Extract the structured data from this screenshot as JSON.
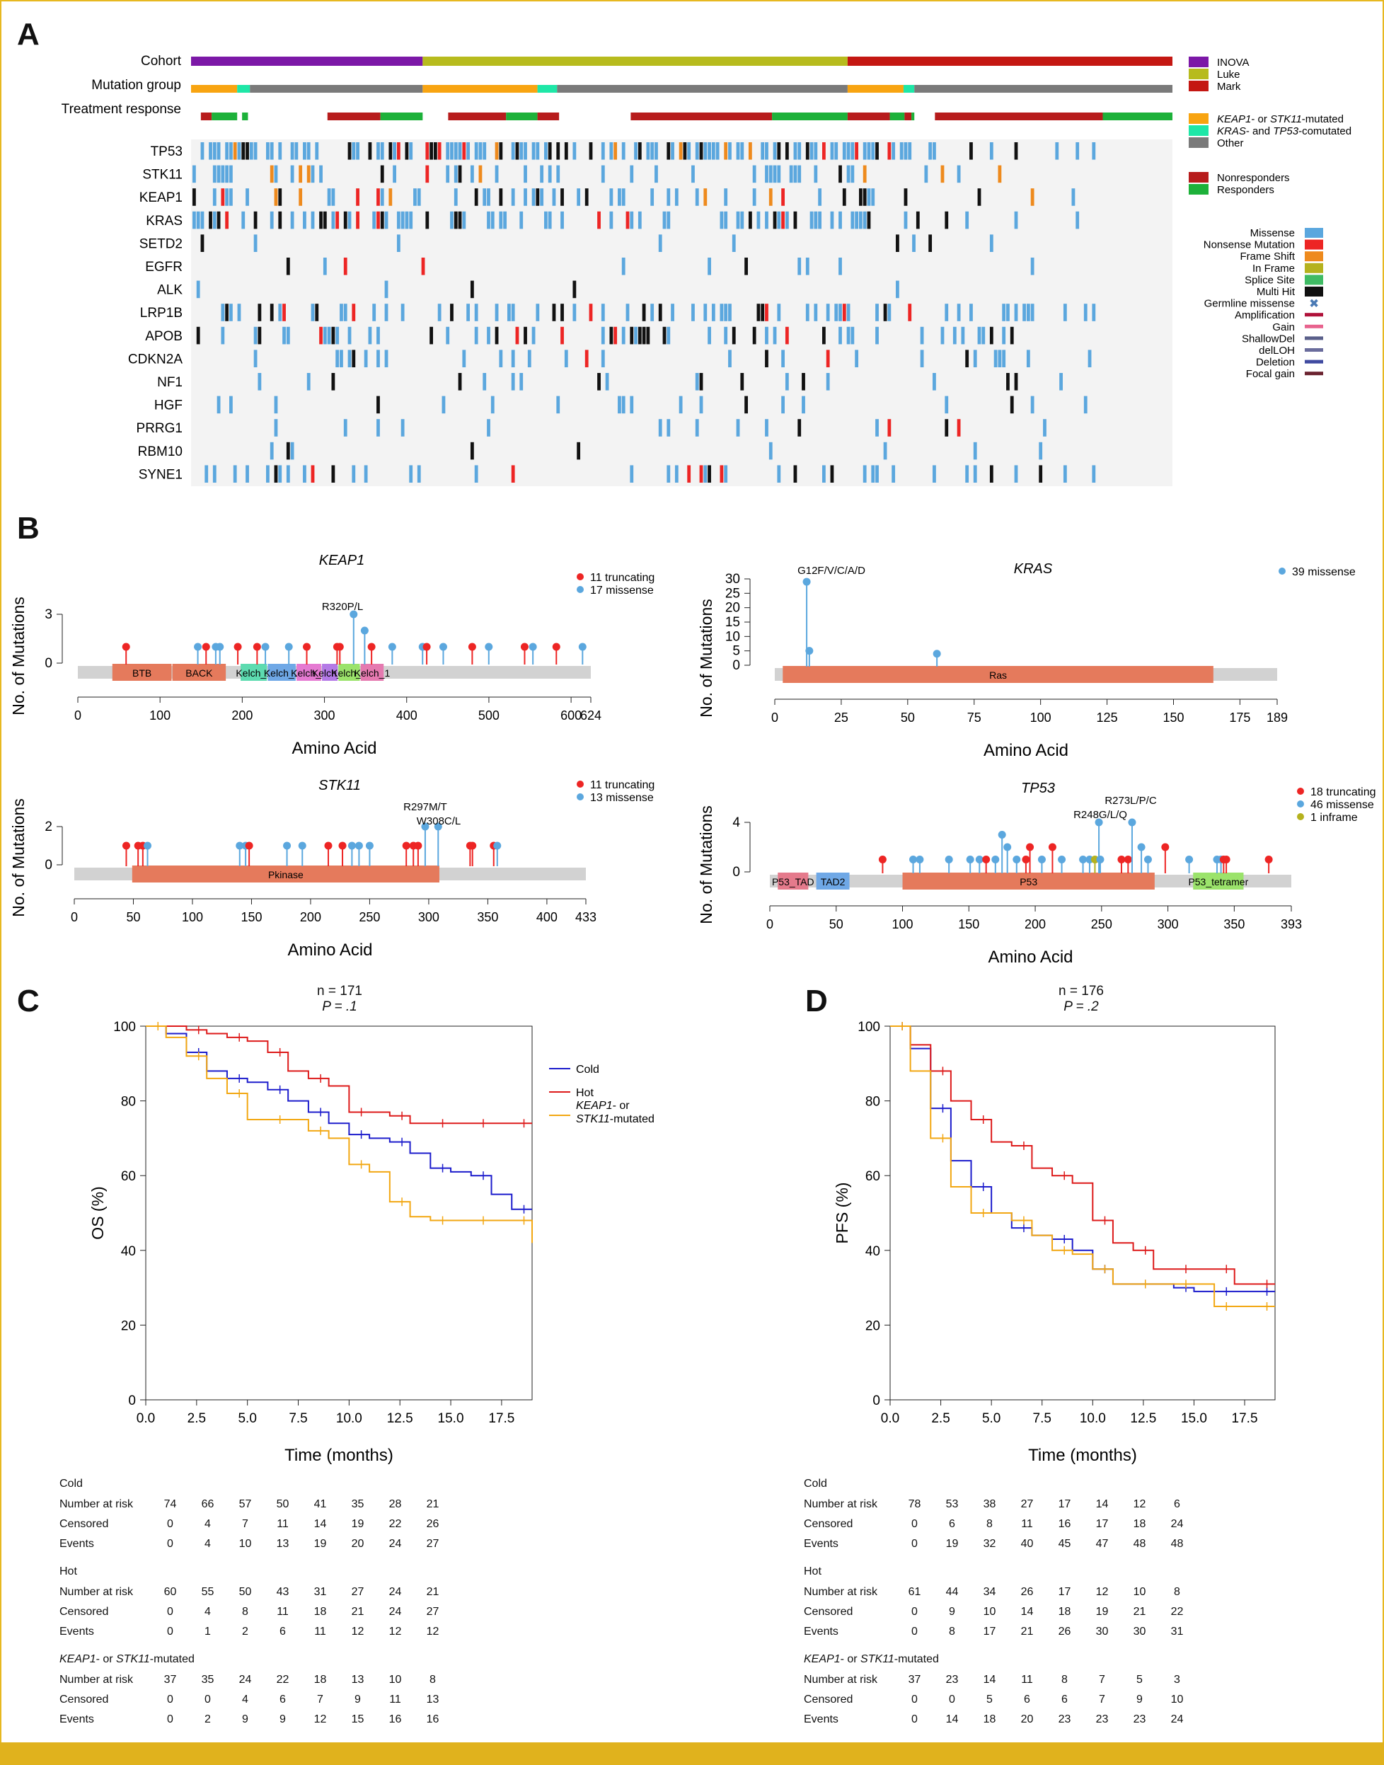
{
  "panels": {
    "a": "A",
    "b": "B",
    "c": "C",
    "d": "D"
  },
  "colors": {
    "missense": "#5ba7de",
    "nonsense": "#ed2524",
    "frameshift": "#ee8a1d",
    "inframe": "#b5b21e",
    "splice": "#3fbb64",
    "multihit": "#111111",
    "germline": "#4a7ab5",
    "amplification": "#b0123a",
    "gain": "#e8638e",
    "shallowdel": "#5a5f8a",
    "delloh": "#6a6c9c",
    "deletion": "#3f4aa0",
    "focalgain": "#6b2330",
    "inova": "#7c18a7",
    "luke": "#b7bb1d",
    "mark": "#c41712",
    "keap": "#f8a411",
    "kras_tp53": "#1ee7a7",
    "other": "#7a7a7a",
    "nonresp": "#b71c1c",
    "resp": "#1db13a",
    "cold": "#1c1ccc",
    "hot": "#dd1a1a",
    "keap_curve": "#f2a712",
    "frame": "#e0b21d"
  },
  "oncoprint": {
    "track_labels": [
      "Cohort",
      "Mutation group",
      "Treatment response"
    ],
    "genes": [
      "TP53",
      "STK11",
      "KEAP1",
      "KRAS",
      "SETD2",
      "EGFR",
      "ALK",
      "LRP1B",
      "APOB",
      "CDKN2A",
      "NF1",
      "HGF",
      "PRRG1",
      "RBM10",
      "SYNE1"
    ],
    "legend_cohort": [
      "INOVA",
      "Luke",
      "Mark"
    ],
    "legend_group": [
      {
        "pre": "KEAP1",
        "mid": "- or ",
        "it2": "STK11",
        "post": "-mutated"
      },
      {
        "pre": "KRAS",
        "mid": "- and ",
        "it2": "TP53",
        "post": "-comutated"
      },
      {
        "pre": "",
        "mid": "Other",
        "it2": "",
        "post": ""
      }
    ],
    "legend_response": [
      "Nonresponders",
      "Responders"
    ],
    "legend_alteration": [
      "Missense",
      "Nonsense Mutation",
      "Frame Shift",
      "In Frame",
      "Splice Site",
      "Multi Hit",
      "Germline missense",
      "Amplification",
      "Gain",
      "ShallowDel",
      "delLOH",
      "Deletion",
      "Focal gain"
    ]
  },
  "lollipops": {
    "y_label": "No. of Mutations",
    "x_label": "Amino Acid",
    "keap1": {
      "title": "KEAP1",
      "legend": [
        "11 truncating",
        "17 missense"
      ],
      "annotation": "R320P/L",
      "yticks": [
        "3",
        "0"
      ],
      "xticks": [
        "0",
        "100",
        "200",
        "300",
        "400",
        "500",
        "600",
        "624"
      ],
      "domains": [
        "BTB",
        "BACK",
        "Kelch_1",
        "Kelch_1",
        "Kelch_1",
        "Kelch_1",
        "Kelch_1",
        "Kelch_1"
      ]
    },
    "kras": {
      "title": "KRAS",
      "legend": [
        "39 missense"
      ],
      "annotation": "G12F/V/C/A/D",
      "yticks": [
        "30",
        "25",
        "20",
        "15",
        "10",
        "5",
        "0"
      ],
      "xticks": [
        "0",
        "25",
        "50",
        "75",
        "100",
        "125",
        "150",
        "175",
        "189"
      ],
      "domains": [
        "Ras"
      ]
    },
    "stk11": {
      "title": "STK11",
      "legend": [
        "11 truncating",
        "13 missense"
      ],
      "annotations": [
        "R297M/T",
        "W308C/L"
      ],
      "yticks": [
        "2",
        "0"
      ],
      "xticks": [
        "0",
        "50",
        "100",
        "150",
        "200",
        "250",
        "300",
        "350",
        "400",
        "433"
      ],
      "domains": [
        "Pkinase"
      ]
    },
    "tp53": {
      "title": "TP53",
      "legend": [
        "18 truncating",
        "46 missense",
        "1 inframe"
      ],
      "annotations": [
        "R273L/P/C",
        "R248G/L/Q"
      ],
      "yticks": [
        "4",
        "0"
      ],
      "xticks": [
        "0",
        "50",
        "100",
        "150",
        "200",
        "250",
        "300",
        "350",
        "393"
      ],
      "domains": [
        "P53_TAD",
        "TAD2",
        "P53",
        "P53_tetramer"
      ]
    }
  },
  "km_c": {
    "n": "n = 171",
    "p": "P = .1",
    "ylabel": "OS (%)",
    "xlabel": "Time (months)",
    "legend": [
      "Cold",
      "Hot",
      "KEAP1- or",
      "STK11-mutated"
    ],
    "xticks": [
      "0.0",
      "2.5",
      "5.0",
      "7.5",
      "10.0",
      "12.5",
      "15.0",
      "17.5"
    ],
    "yticks": [
      "0",
      "20",
      "40",
      "60",
      "80",
      "100"
    ],
    "groups": [
      {
        "name": "Cold",
        "rows": [
          [
            "Number at risk",
            "74",
            "66",
            "57",
            "50",
            "41",
            "35",
            "28",
            "21"
          ],
          [
            "Censored",
            "0",
            "4",
            "7",
            "11",
            "14",
            "19",
            "22",
            "26"
          ],
          [
            "Events",
            "0",
            "4",
            "10",
            "13",
            "19",
            "20",
            "24",
            "27"
          ]
        ]
      },
      {
        "name": "Hot",
        "rows": [
          [
            "Number at risk",
            "60",
            "55",
            "50",
            "43",
            "31",
            "27",
            "24",
            "21"
          ],
          [
            "Censored",
            "0",
            "4",
            "8",
            "11",
            "18",
            "21",
            "24",
            "27"
          ],
          [
            "Events",
            "0",
            "1",
            "2",
            "6",
            "11",
            "12",
            "12",
            "12"
          ]
        ]
      },
      {
        "name": "KEAP1- or STK11-mutated",
        "rows": [
          [
            "Number at risk",
            "37",
            "35",
            "24",
            "22",
            "18",
            "13",
            "10",
            "8"
          ],
          [
            "Censored",
            "0",
            "0",
            "4",
            "6",
            "7",
            "9",
            "11",
            "13"
          ],
          [
            "Events",
            "0",
            "2",
            "9",
            "9",
            "12",
            "15",
            "16",
            "16"
          ]
        ]
      }
    ]
  },
  "km_d": {
    "n": "n = 176",
    "p": "P = .2",
    "ylabel": "PFS (%)",
    "xlabel": "Time (months)",
    "xticks": [
      "0.0",
      "2.5",
      "5.0",
      "7.5",
      "10.0",
      "12.5",
      "15.0",
      "17.5"
    ],
    "yticks": [
      "0",
      "20",
      "40",
      "60",
      "80",
      "100"
    ],
    "groups": [
      {
        "name": "Cold",
        "rows": [
          [
            "Number at risk",
            "78",
            "53",
            "38",
            "27",
            "17",
            "14",
            "12",
            "6"
          ],
          [
            "Censored",
            "0",
            "6",
            "8",
            "11",
            "16",
            "17",
            "18",
            "24"
          ],
          [
            "Events",
            "0",
            "19",
            "32",
            "40",
            "45",
            "47",
            "48",
            "48"
          ]
        ]
      },
      {
        "name": "Hot",
        "rows": [
          [
            "Number at risk",
            "61",
            "44",
            "34",
            "26",
            "17",
            "12",
            "10",
            "8"
          ],
          [
            "Censored",
            "0",
            "9",
            "10",
            "14",
            "18",
            "19",
            "21",
            "22"
          ],
          [
            "Events",
            "0",
            "8",
            "17",
            "21",
            "26",
            "30",
            "30",
            "31"
          ]
        ]
      },
      {
        "name": "KEAP1- or STK11-mutated",
        "rows": [
          [
            "Number at risk",
            "37",
            "23",
            "14",
            "11",
            "8",
            "7",
            "5",
            "3"
          ],
          [
            "Censored",
            "0",
            "0",
            "5",
            "6",
            "6",
            "7",
            "9",
            "10"
          ],
          [
            "Events",
            "0",
            "14",
            "18",
            "20",
            "23",
            "23",
            "23",
            "24"
          ]
        ]
      }
    ]
  },
  "chart_data": [
    {
      "type": "line",
      "title": "",
      "ylabel": "OS (%)",
      "xlabel": "Time (months)",
      "ylim": [
        0,
        100
      ],
      "xlim": [
        0,
        19
      ],
      "series": [
        {
          "name": "Cold",
          "x": [
            0,
            1,
            2,
            3,
            4,
            5,
            6,
            7,
            8,
            9,
            10,
            11,
            12,
            13,
            14,
            15,
            16,
            17,
            18,
            19
          ],
          "values": [
            100,
            98,
            93,
            88,
            86,
            85,
            83,
            80,
            77,
            74,
            71,
            70,
            69,
            66,
            62,
            61,
            60,
            55,
            51,
            51
          ]
        },
        {
          "name": "Hot",
          "x": [
            0,
            1,
            2,
            3,
            4,
            5,
            6,
            7,
            8,
            9,
            10,
            11,
            12,
            13,
            14,
            15,
            16,
            17,
            18,
            19
          ],
          "values": [
            100,
            100,
            99,
            98,
            97,
            96,
            93,
            88,
            86,
            84,
            77,
            77,
            76,
            74,
            74,
            74,
            74,
            74,
            74,
            74
          ]
        },
        {
          "name": "KEAP1- or STK11-mutated",
          "x": [
            0,
            1,
            2,
            3,
            4,
            5,
            6,
            7,
            8,
            9,
            10,
            11,
            12,
            13,
            14,
            15,
            16,
            17,
            18,
            19
          ],
          "values": [
            100,
            97,
            92,
            86,
            82,
            75,
            75,
            75,
            72,
            70,
            63,
            61,
            53,
            49,
            48,
            48,
            48,
            48,
            48,
            42
          ]
        }
      ]
    },
    {
      "type": "line",
      "title": "",
      "ylabel": "PFS (%)",
      "xlabel": "Time (months)",
      "ylim": [
        0,
        100
      ],
      "xlim": [
        0,
        19
      ],
      "series": [
        {
          "name": "Cold",
          "x": [
            0,
            1,
            2,
            3,
            4,
            5,
            6,
            7,
            8,
            9,
            10,
            11,
            12,
            13,
            14,
            15,
            16,
            17,
            18,
            19
          ],
          "values": [
            100,
            94,
            78,
            64,
            57,
            50,
            46,
            44,
            43,
            40,
            35,
            31,
            31,
            31,
            30,
            29,
            29,
            29,
            29,
            29
          ]
        },
        {
          "name": "Hot",
          "x": [
            0,
            1,
            2,
            3,
            4,
            5,
            6,
            7,
            8,
            9,
            10,
            11,
            12,
            13,
            14,
            15,
            16,
            17,
            18,
            19
          ],
          "values": [
            100,
            95,
            88,
            80,
            75,
            69,
            68,
            62,
            60,
            58,
            48,
            42,
            40,
            35,
            35,
            35,
            35,
            31,
            31,
            31
          ]
        },
        {
          "name": "KEAP1- or STK11-mutated",
          "x": [
            0,
            1,
            2,
            3,
            4,
            5,
            6,
            7,
            8,
            9,
            10,
            11,
            12,
            13,
            14,
            15,
            16,
            17,
            18,
            19
          ],
          "values": [
            100,
            88,
            70,
            57,
            50,
            50,
            48,
            44,
            40,
            39,
            35,
            31,
            31,
            31,
            31,
            31,
            25,
            25,
            25,
            25
          ]
        }
      ]
    }
  ]
}
